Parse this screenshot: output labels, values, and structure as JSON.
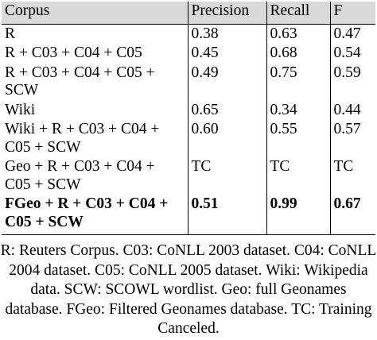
{
  "table": {
    "headers": [
      "Corpus",
      "Precision",
      "Recall",
      "F"
    ],
    "rows": [
      {
        "corpus": "R",
        "precision": "0.38",
        "recall": "0.63",
        "f": "0.47"
      },
      {
        "corpus": "R + C03 + C04 + C05",
        "precision": "0.45",
        "recall": "0.68",
        "f": "0.54"
      },
      {
        "corpus": "R + C03 + C04 + C05 + SCW",
        "precision": "0.49",
        "recall": "0.75",
        "f": "0.59"
      },
      {
        "corpus": "Wiki",
        "precision": "0.65",
        "recall": "0.34",
        "f": "0.44"
      },
      {
        "corpus": "Wiki + R + C03 + C04 + C05 + SCW",
        "precision": "0.60",
        "recall": "0.55",
        "f": "0.57"
      },
      {
        "corpus": "Geo + R + C03 + C04 + C05 + SCW",
        "precision": "TC",
        "recall": "TC",
        "f": "TC"
      },
      {
        "corpus": "FGeo + R + C03 + C04 + C05 + SCW",
        "precision": "0.51",
        "recall": "0.99",
        "f": "0.67"
      }
    ]
  },
  "caption": "R: Reuters Corpus. C03: CoNLL 2003 dataset. C04: CoNLL 2004 dataset. C05: CoNLL 2005 dataset. Wiki: Wikipedia data. SCW: SCOWL wordlist. Geo: full Geonames database. FGeo: Filtered Geonames database. TC: Training Canceled."
}
